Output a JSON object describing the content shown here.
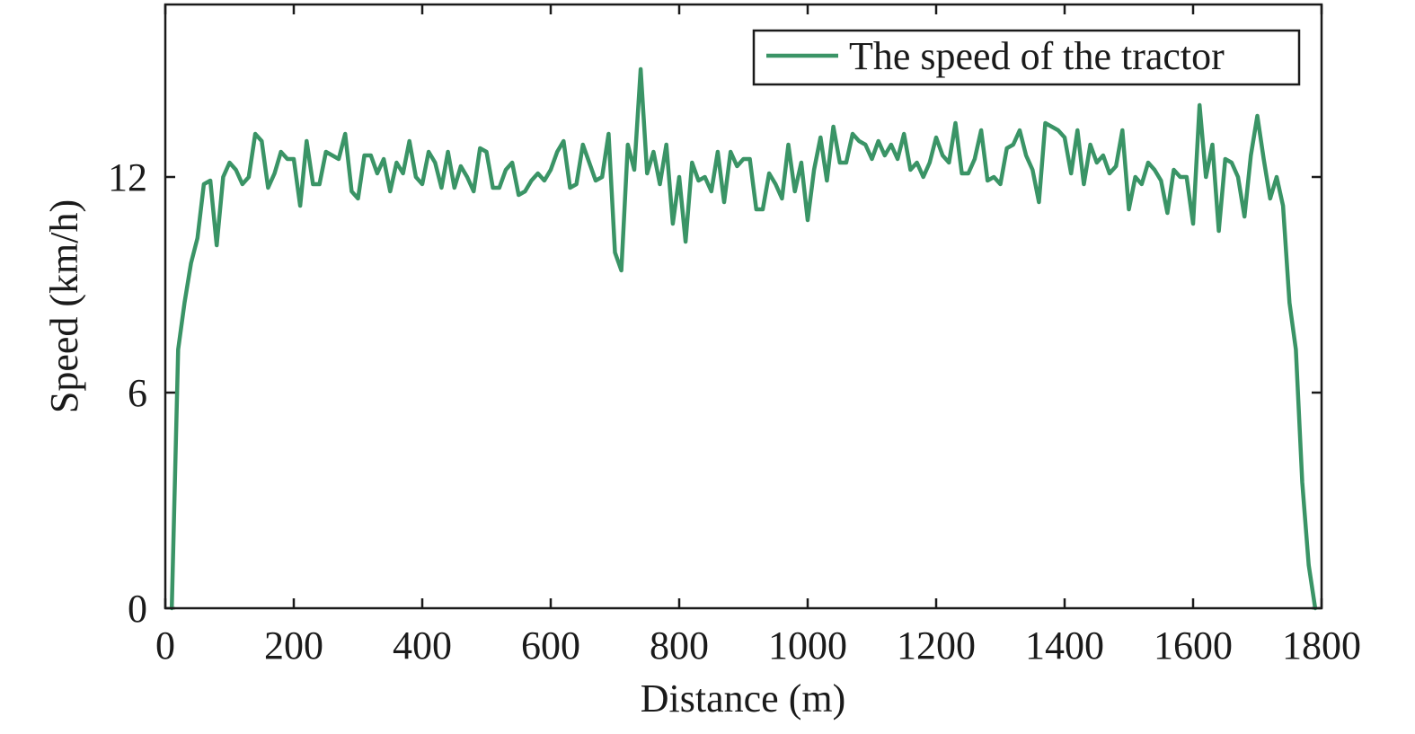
{
  "chart_data": {
    "type": "line",
    "title": "",
    "xlabel": "Distance (m)",
    "ylabel": "Speed (km/h)",
    "xlim": [
      0,
      1800
    ],
    "ylim": [
      0,
      16.8
    ],
    "xticks": [
      0,
      200,
      400,
      600,
      800,
      1000,
      1200,
      1400,
      1600,
      1800
    ],
    "yticks": [
      0,
      6,
      12
    ],
    "xtick_labels": [
      "0",
      "200",
      "400",
      "600",
      "800",
      "1000",
      "1200",
      "1400",
      "1600",
      "1800"
    ],
    "ytick_labels": [
      "0",
      "6",
      "12"
    ],
    "grid": false,
    "legend_position": "top-right",
    "series": [
      {
        "name": "The speed of the tractor",
        "color": "#3a9466",
        "x": [
          10,
          20,
          30,
          40,
          50,
          60,
          70,
          80,
          90,
          100,
          110,
          120,
          130,
          140,
          150,
          160,
          170,
          180,
          190,
          200,
          210,
          220,
          230,
          240,
          250,
          260,
          270,
          280,
          290,
          300,
          310,
          320,
          330,
          340,
          350,
          360,
          370,
          380,
          390,
          400,
          410,
          420,
          430,
          440,
          450,
          460,
          470,
          480,
          490,
          500,
          510,
          520,
          530,
          540,
          550,
          560,
          570,
          580,
          590,
          600,
          610,
          620,
          630,
          640,
          650,
          660,
          670,
          680,
          690,
          700,
          710,
          720,
          730,
          740,
          750,
          760,
          770,
          780,
          790,
          800,
          810,
          820,
          830,
          840,
          850,
          860,
          870,
          880,
          890,
          900,
          910,
          920,
          930,
          940,
          950,
          960,
          970,
          980,
          990,
          1000,
          1010,
          1020,
          1030,
          1040,
          1050,
          1060,
          1070,
          1080,
          1090,
          1100,
          1110,
          1120,
          1130,
          1140,
          1150,
          1160,
          1170,
          1180,
          1190,
          1200,
          1210,
          1220,
          1230,
          1240,
          1250,
          1260,
          1270,
          1280,
          1290,
          1300,
          1310,
          1320,
          1330,
          1340,
          1350,
          1360,
          1370,
          1380,
          1390,
          1400,
          1410,
          1420,
          1430,
          1440,
          1450,
          1460,
          1470,
          1480,
          1490,
          1500,
          1510,
          1520,
          1530,
          1540,
          1550,
          1560,
          1570,
          1580,
          1590,
          1600,
          1610,
          1620,
          1630,
          1640,
          1650,
          1660,
          1670,
          1680,
          1690,
          1700,
          1710,
          1720,
          1730,
          1740,
          1750,
          1760,
          1770,
          1780,
          1790
        ],
        "values": [
          0.0,
          7.2,
          8.5,
          9.6,
          10.3,
          11.8,
          11.9,
          10.1,
          12.0,
          12.4,
          12.2,
          11.8,
          12.0,
          13.2,
          13.0,
          11.7,
          12.1,
          12.7,
          12.5,
          12.5,
          11.2,
          13.0,
          11.8,
          11.8,
          12.7,
          12.6,
          12.5,
          13.2,
          11.6,
          11.4,
          12.6,
          12.6,
          12.1,
          12.5,
          11.6,
          12.4,
          12.1,
          13.0,
          12.0,
          11.8,
          12.7,
          12.4,
          11.7,
          12.7,
          11.7,
          12.3,
          12.0,
          11.6,
          12.8,
          12.7,
          11.7,
          11.7,
          12.2,
          12.4,
          11.5,
          11.6,
          11.9,
          12.1,
          11.9,
          12.2,
          12.7,
          13.0,
          11.7,
          11.8,
          12.9,
          12.4,
          11.9,
          12.0,
          13.2,
          9.9,
          9.4,
          12.9,
          12.2,
          15.0,
          12.1,
          12.7,
          11.8,
          12.9,
          10.7,
          12.0,
          10.2,
          12.4,
          11.9,
          12.0,
          11.6,
          12.7,
          11.3,
          12.7,
          12.3,
          12.5,
          12.5,
          11.1,
          11.1,
          12.1,
          11.8,
          11.4,
          12.9,
          11.6,
          12.4,
          10.8,
          12.2,
          13.1,
          11.9,
          13.4,
          12.4,
          12.4,
          13.2,
          13.0,
          12.9,
          12.5,
          13.0,
          12.6,
          12.9,
          12.5,
          13.2,
          12.2,
          12.4,
          12.0,
          12.4,
          13.1,
          12.6,
          12.4,
          13.5,
          12.1,
          12.1,
          12.5,
          13.3,
          11.9,
          12.0,
          11.8,
          12.8,
          12.9,
          13.3,
          12.6,
          12.2,
          11.3,
          13.5,
          13.4,
          13.3,
          13.1,
          12.1,
          13.3,
          11.8,
          12.9,
          12.4,
          12.6,
          12.1,
          12.3,
          13.3,
          11.1,
          12.0,
          11.8,
          12.4,
          12.2,
          11.9,
          11.0,
          12.2,
          12.0,
          12.0,
          10.7,
          14.0,
          12.0,
          12.9,
          10.5,
          12.5,
          12.4,
          12.0,
          10.9,
          12.6,
          13.7,
          12.5,
          11.4,
          12.0,
          11.2,
          8.5,
          7.2,
          3.5,
          1.2,
          0.0
        ]
      }
    ]
  }
}
